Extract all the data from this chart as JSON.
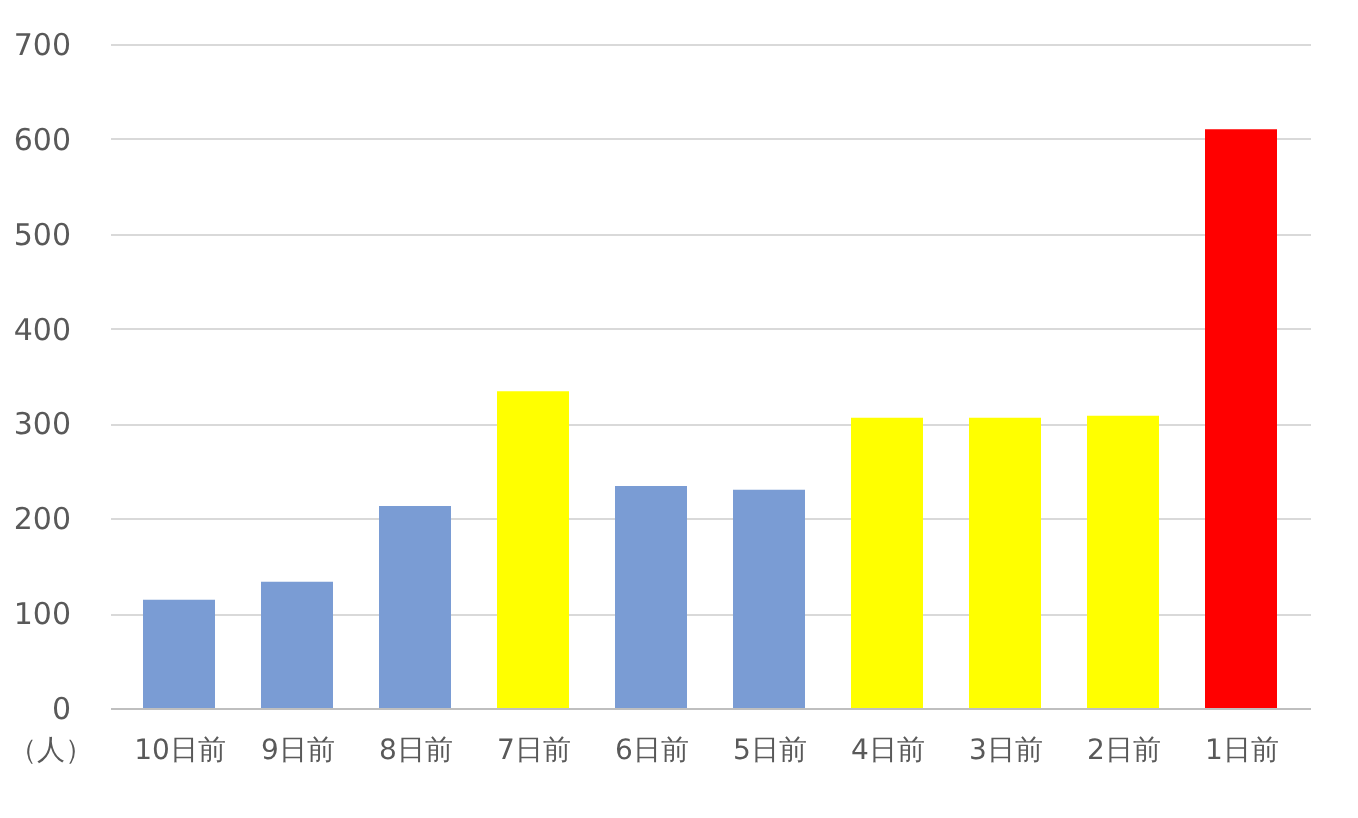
{
  "chart_data": {
    "type": "bar",
    "ylabel": "（人）",
    "categories": [
      "10日前",
      "9日前",
      "8日前",
      "7日前",
      "6日前",
      "5日前",
      "4日前",
      "3日前",
      "2日前",
      "1日前"
    ],
    "values": [
      114,
      133,
      213,
      334,
      234,
      230,
      306,
      306,
      308,
      610
    ],
    "colors": [
      "#7a9cd4",
      "#7a9cd4",
      "#7a9cd4",
      "#ffff00",
      "#7a9cd4",
      "#7a9cd4",
      "#ffff00",
      "#ffff00",
      "#ffff00",
      "#ff0000"
    ],
    "ylim": [
      0,
      700
    ],
    "yticks": [
      0,
      100,
      200,
      300,
      400,
      500,
      600,
      700
    ],
    "grid": "y"
  }
}
